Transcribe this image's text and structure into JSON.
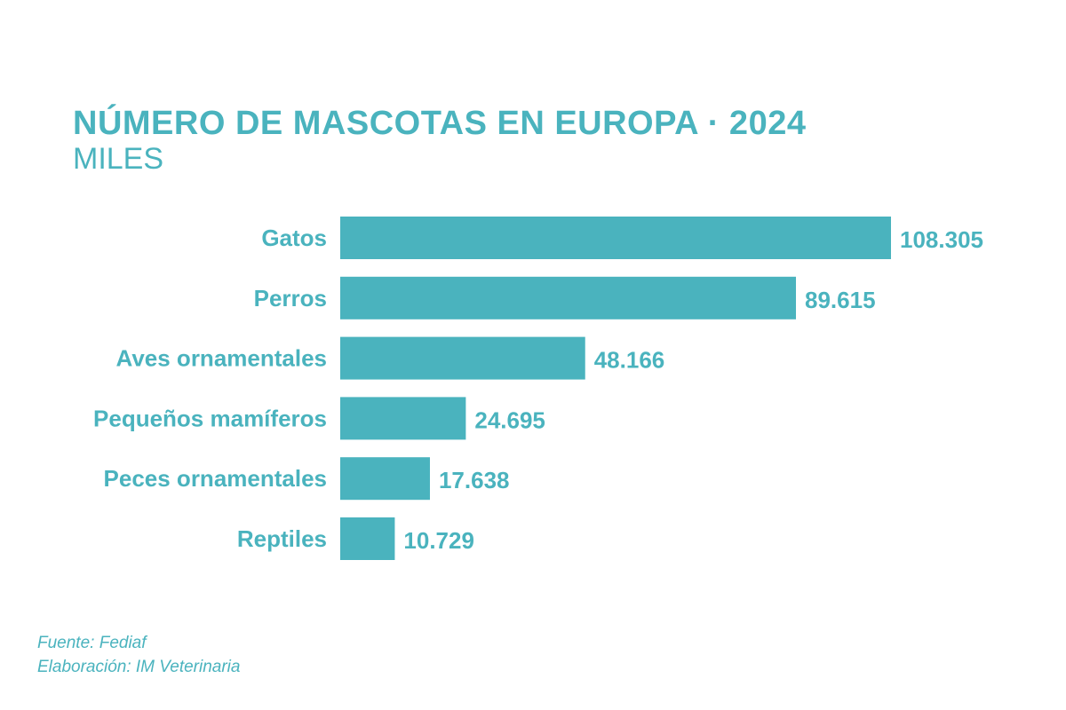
{
  "chart_data": {
    "type": "bar",
    "orientation": "horizontal",
    "title": "NÚMERO DE MASCOTAS EN EUROPA · 2024",
    "subtitle": "MILES",
    "categories": [
      "Gatos",
      "Perros",
      "Aves ornamentales",
      "Pequeños mamíferos",
      "Peces ornamentales",
      "Reptiles"
    ],
    "values": [
      108305,
      89615,
      48166,
      24695,
      17638,
      10729
    ],
    "value_labels": [
      "108.305",
      "89.615",
      "48.166",
      "24.695",
      "17.638",
      "10.729"
    ],
    "xlim": [
      0,
      108305
    ],
    "grid": false,
    "color": "#4ab3be"
  },
  "footer": {
    "source": "Fuente: Fediaf",
    "credit": "Elaboración: IM Veterinaria"
  }
}
